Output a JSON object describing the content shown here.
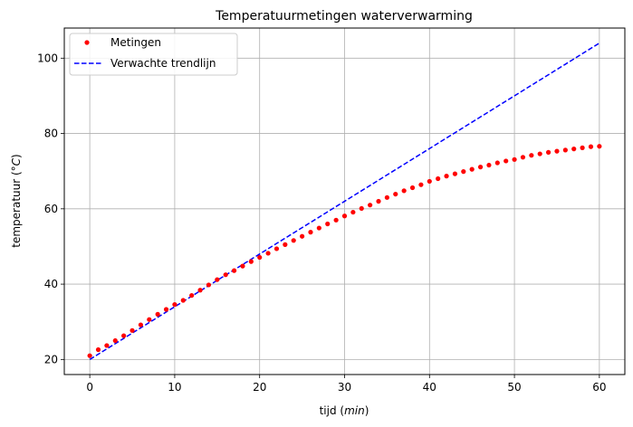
{
  "chart_data": {
    "type": "line",
    "title": "Temperatuurmetingen waterverwarming",
    "xlabel": {
      "prefix": "tijd (",
      "unit": "min",
      "suffix": ")"
    },
    "ylabel": {
      "prefix": "temperatuur (",
      "unit": "°C",
      "suffix": ")"
    },
    "xlim": [
      -3,
      63
    ],
    "ylim": [
      16,
      108
    ],
    "xticks": [
      0,
      10,
      20,
      30,
      40,
      50,
      60
    ],
    "yticks": [
      20,
      40,
      60,
      80,
      100
    ],
    "grid": true,
    "legend_position": "top-left",
    "series": [
      {
        "name": "Metingen",
        "kind": "scatter",
        "color": "#ff0000",
        "x": [
          0,
          1,
          2,
          3,
          4,
          5,
          6,
          7,
          8,
          9,
          10,
          11,
          12,
          13,
          14,
          15,
          16,
          17,
          18,
          19,
          20,
          21,
          22,
          23,
          24,
          25,
          26,
          27,
          28,
          29,
          30,
          31,
          32,
          33,
          34,
          35,
          36,
          37,
          38,
          39,
          40,
          41,
          42,
          43,
          44,
          45,
          46,
          47,
          48,
          49,
          50,
          51,
          52,
          53,
          54,
          55,
          56,
          57,
          58,
          59,
          60
        ],
        "y": [
          21.0,
          22.6,
          23.7,
          25.0,
          26.3,
          27.7,
          29.2,
          30.6,
          32.0,
          33.3,
          34.6,
          35.7,
          37.0,
          38.4,
          39.8,
          41.2,
          42.5,
          43.6,
          44.8,
          46.0,
          47.1,
          48.2,
          49.4,
          50.5,
          51.6,
          52.7,
          53.8,
          54.9,
          56.0,
          57.0,
          58.1,
          59.1,
          60.1,
          61.0,
          62.0,
          63.0,
          63.9,
          64.8,
          65.6,
          66.4,
          67.3,
          68.0,
          68.7,
          69.3,
          69.9,
          70.5,
          71.1,
          71.6,
          72.2,
          72.7,
          73.1,
          73.7,
          74.2,
          74.6,
          75.0,
          75.3,
          75.6,
          75.9,
          76.2,
          76.5,
          76.6
        ]
      },
      {
        "name": "Verwachte trendlijn",
        "kind": "line",
        "style": "dashed",
        "color": "#0000ff",
        "x": [
          0,
          60
        ],
        "y": [
          20,
          104
        ]
      }
    ]
  }
}
